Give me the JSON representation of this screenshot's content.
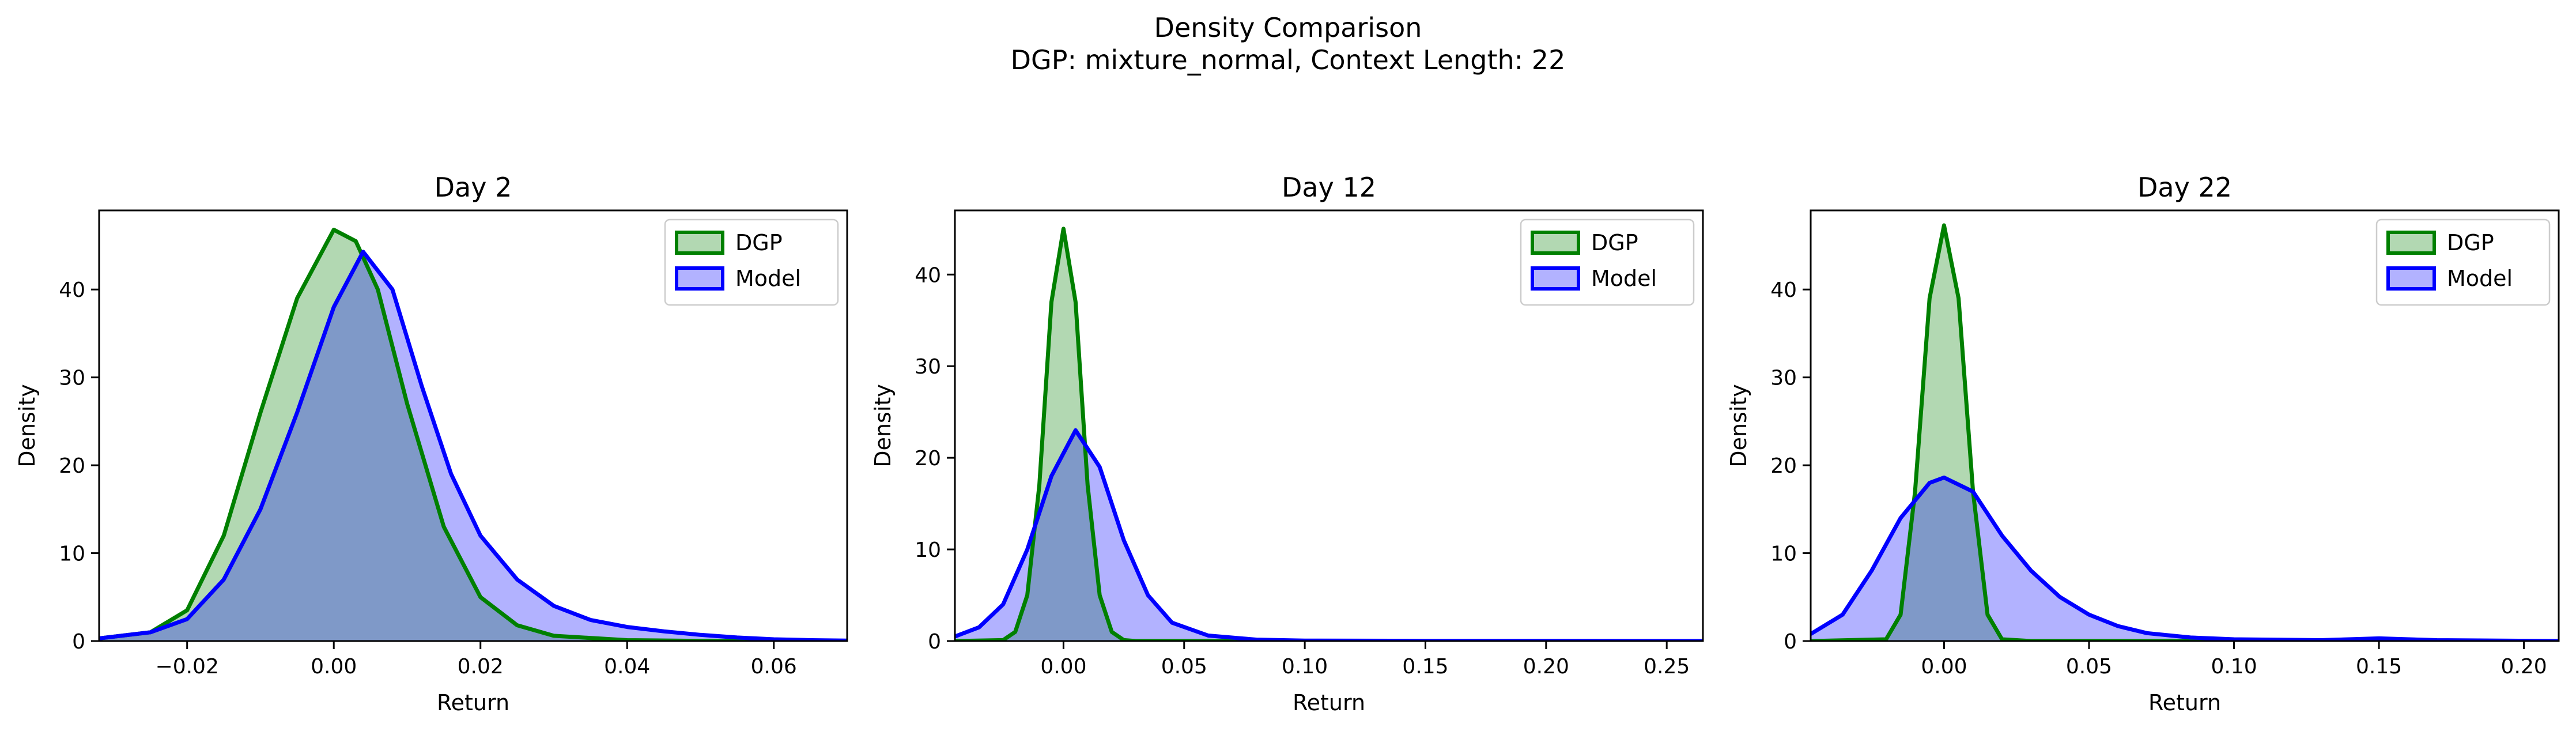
{
  "figure": {
    "title_line1": "Density Comparison",
    "title_line2": "DGP: mixture_normal, Context Length: 22"
  },
  "colors": {
    "dgp_line": "#008000",
    "dgp_fill": "#b2d8b2",
    "model_line": "#0000ff",
    "model_fill": "#b2b2ff",
    "overlap_fill": "#7f99c8"
  },
  "chart_data": [
    {
      "type": "area",
      "title": "Day 2",
      "xlabel": "Return",
      "ylabel": "Density",
      "xlim": [
        -0.032,
        0.07
      ],
      "ylim": [
        0,
        49
      ],
      "xticks": [
        -0.02,
        0.0,
        0.02,
        0.04,
        0.06
      ],
      "xtick_labels": [
        "−0.02",
        "0.00",
        "0.02",
        "0.04",
        "0.06"
      ],
      "yticks": [
        0,
        10,
        20,
        30,
        40
      ],
      "ytick_labels": [
        "0",
        "10",
        "20",
        "30",
        "40"
      ],
      "grid": false,
      "legend": "top-right",
      "series": [
        {
          "name": "DGP",
          "x": [
            -0.032,
            -0.025,
            -0.02,
            -0.015,
            -0.01,
            -0.005,
            0.0,
            0.003,
            0.006,
            0.01,
            0.015,
            0.02,
            0.025,
            0.03,
            0.04,
            0.05,
            0.06,
            0.07
          ],
          "y": [
            0.3,
            1.0,
            3.5,
            12,
            26,
            39,
            46.8,
            45.5,
            40,
            27,
            13,
            5,
            1.8,
            0.6,
            0.1,
            0.02,
            0.0,
            0.0
          ]
        },
        {
          "name": "Model",
          "x": [
            -0.032,
            -0.025,
            -0.02,
            -0.015,
            -0.01,
            -0.005,
            0.0,
            0.004,
            0.008,
            0.012,
            0.016,
            0.02,
            0.025,
            0.03,
            0.035,
            0.04,
            0.045,
            0.05,
            0.055,
            0.06,
            0.065,
            0.07
          ],
          "y": [
            0.3,
            1.0,
            2.5,
            7,
            15,
            26,
            38,
            44.3,
            40,
            29,
            19,
            12,
            7,
            4,
            2.4,
            1.6,
            1.1,
            0.7,
            0.4,
            0.2,
            0.1,
            0.05
          ]
        }
      ]
    },
    {
      "type": "area",
      "title": "Day 12",
      "xlabel": "Return",
      "ylabel": "Density",
      "xlim": [
        -0.045,
        0.265
      ],
      "ylim": [
        0,
        47
      ],
      "xticks": [
        0.0,
        0.05,
        0.1,
        0.15,
        0.2,
        0.25
      ],
      "xtick_labels": [
        "0.00",
        "0.05",
        "0.10",
        "0.15",
        "0.20",
        "0.25"
      ],
      "yticks": [
        0,
        10,
        20,
        30,
        40
      ],
      "ytick_labels": [
        "0",
        "10",
        "20",
        "30",
        "40"
      ],
      "grid": false,
      "legend": "top-right",
      "series": [
        {
          "name": "DGP",
          "x": [
            -0.045,
            -0.025,
            -0.02,
            -0.015,
            -0.01,
            -0.005,
            0.0,
            0.005,
            0.01,
            0.015,
            0.02,
            0.025,
            0.03,
            0.1,
            0.265
          ],
          "y": [
            0.0,
            0.1,
            1.0,
            5,
            17,
            37,
            45,
            37,
            17,
            5,
            1,
            0.1,
            0.0,
            0.0,
            0.0
          ]
        },
        {
          "name": "Model",
          "x": [
            -0.045,
            -0.035,
            -0.025,
            -0.015,
            -0.005,
            0.005,
            0.015,
            0.025,
            0.035,
            0.045,
            0.06,
            0.08,
            0.1,
            0.15,
            0.2,
            0.265
          ],
          "y": [
            0.5,
            1.5,
            4,
            10,
            18,
            23,
            19,
            11,
            5,
            2,
            0.6,
            0.15,
            0.05,
            0.02,
            0.01,
            0.0
          ]
        }
      ]
    },
    {
      "type": "area",
      "title": "Day 22",
      "xlabel": "Return",
      "ylabel": "Density",
      "xlim": [
        -0.046,
        0.212
      ],
      "ylim": [
        0,
        49
      ],
      "xticks": [
        0.0,
        0.05,
        0.1,
        0.15,
        0.2
      ],
      "xtick_labels": [
        "0.00",
        "0.05",
        "0.10",
        "0.15",
        "0.20"
      ],
      "yticks": [
        0,
        10,
        20,
        30,
        40
      ],
      "ytick_labels": [
        "0",
        "10",
        "20",
        "30",
        "40"
      ],
      "grid": false,
      "legend": "top-right",
      "series": [
        {
          "name": "DGP",
          "x": [
            -0.046,
            -0.02,
            -0.015,
            -0.01,
            -0.005,
            0.0,
            0.005,
            0.01,
            0.015,
            0.02,
            0.03,
            0.212
          ],
          "y": [
            0.0,
            0.2,
            3,
            17,
            39,
            47.3,
            39,
            17,
            3,
            0.2,
            0.0,
            0.0
          ]
        },
        {
          "name": "Model",
          "x": [
            -0.046,
            -0.035,
            -0.025,
            -0.015,
            -0.005,
            0.0,
            0.01,
            0.02,
            0.03,
            0.04,
            0.05,
            0.06,
            0.07,
            0.085,
            0.1,
            0.13,
            0.15,
            0.17,
            0.212
          ],
          "y": [
            0.8,
            3,
            8,
            14,
            18,
            18.6,
            17,
            12,
            8,
            5,
            3,
            1.7,
            0.9,
            0.4,
            0.2,
            0.1,
            0.3,
            0.1,
            0.0
          ]
        }
      ]
    }
  ]
}
